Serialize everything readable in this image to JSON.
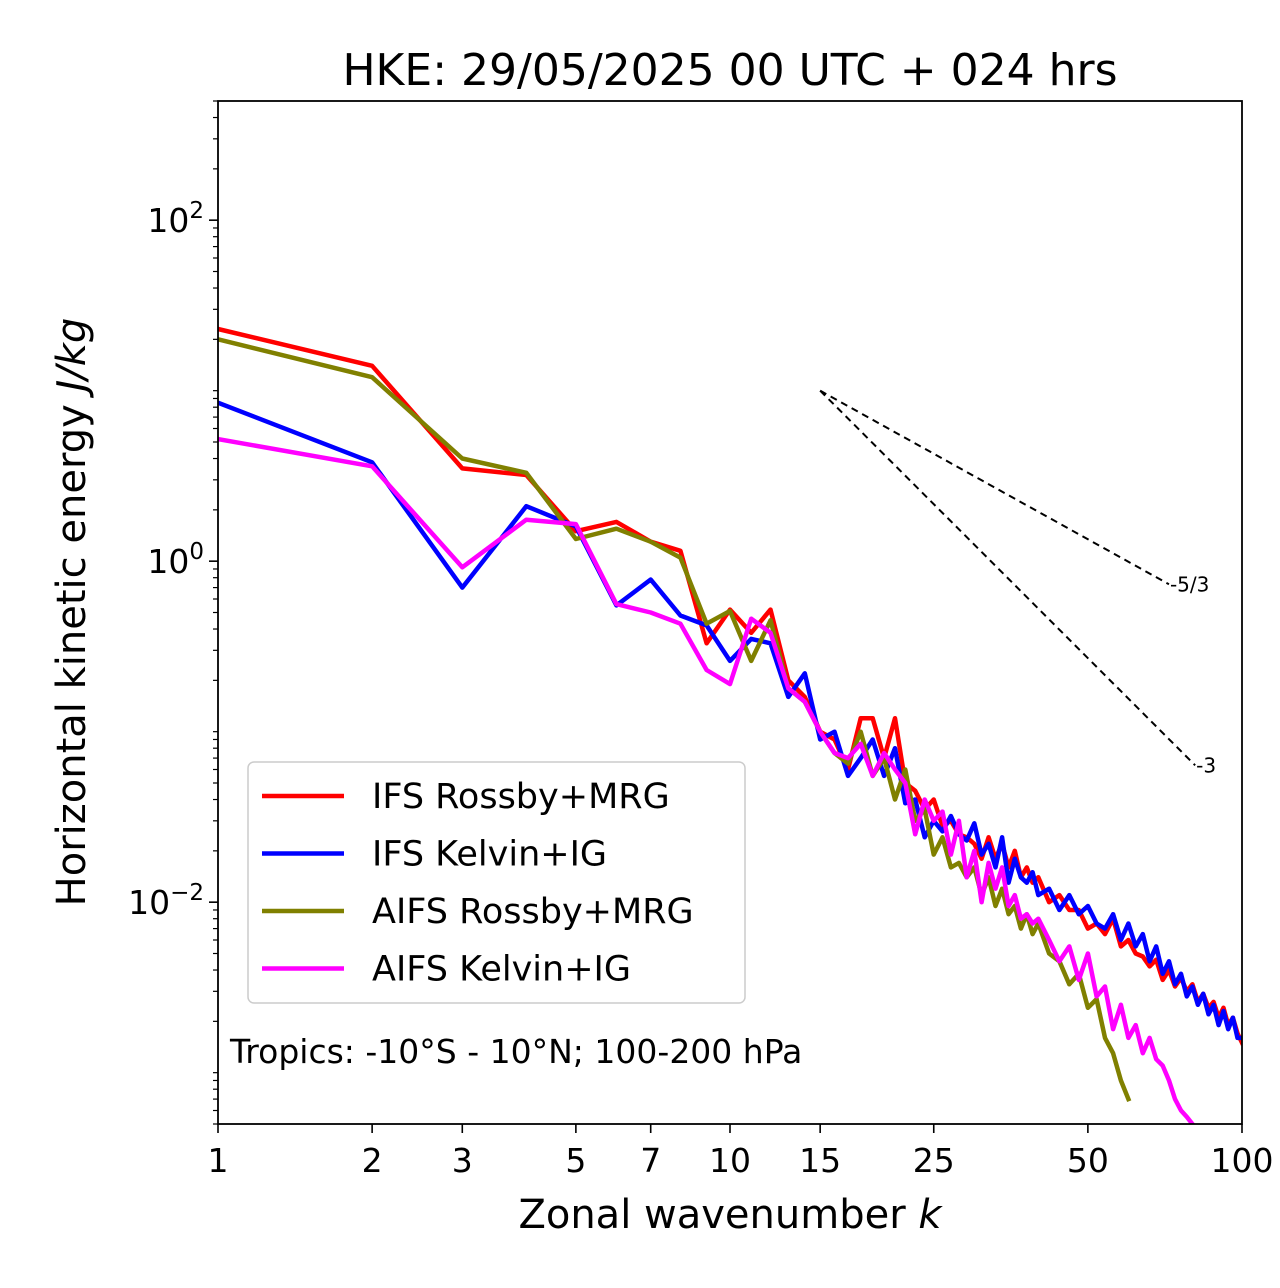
{
  "chart_data": {
    "type": "line",
    "title": "HKE: 29/05/2025 00 UTC + 024 hrs",
    "xlabel": "Zonal wavenumber",
    "xlabel_var": "k",
    "ylabel": "Horizontal kinetic energy",
    "ylabel_unit": "J/kg",
    "xscale": "log",
    "yscale": "log",
    "xlim": [
      1,
      100
    ],
    "ylim": [
      0.0005,
      500
    ],
    "xticks": [
      1,
      2,
      3,
      5,
      7,
      10,
      15,
      25,
      50,
      100
    ],
    "xtick_labels": [
      "1",
      "2",
      "3",
      "5",
      "7",
      "10",
      "15",
      "25",
      "50",
      "100"
    ],
    "yticks": [
      0.01,
      1,
      100
    ],
    "ytick_labels": [
      {
        "base": "10",
        "exp": "−2"
      },
      {
        "base": "10",
        "exp": "0"
      },
      {
        "base": "10",
        "exp": "2"
      }
    ],
    "annotation": "Tropics: -10°S - 10°N; 100-200 hPa",
    "reference_lines": [
      {
        "label": "-5/3",
        "slope": -1.6667,
        "x_start": 15,
        "y_start": 10,
        "x_end": 72,
        "color": "#000000",
        "style": "dashed"
      },
      {
        "label": "-3",
        "slope": -3,
        "x_start": 15,
        "y_start": 10,
        "x_end": 81,
        "color": "#000000",
        "style": "dashed"
      }
    ],
    "legend_position": "lower-left",
    "series": [
      {
        "name": "IFS Rossby+MRG",
        "color": "#ff0000",
        "x": [
          1,
          2,
          3,
          4,
          5,
          6,
          7,
          8,
          9,
          10,
          11,
          12,
          13,
          14,
          15,
          16,
          17,
          18,
          19,
          20,
          21,
          22,
          23,
          24,
          25,
          26,
          27,
          28,
          29,
          30,
          31,
          32,
          33,
          34,
          35,
          36,
          37,
          38,
          39,
          40,
          42,
          44,
          46,
          48,
          50,
          52,
          54,
          56,
          58,
          60,
          62,
          64,
          66,
          68,
          70,
          72,
          74,
          76,
          78,
          80,
          82,
          84,
          86,
          88,
          90,
          92,
          94,
          96,
          98,
          100
        ],
        "y": [
          23,
          14,
          3.5,
          3.2,
          1.5,
          1.7,
          1.3,
          1.15,
          0.33,
          0.52,
          0.38,
          0.52,
          0.2,
          0.16,
          0.1,
          0.09,
          0.06,
          0.12,
          0.12,
          0.07,
          0.12,
          0.05,
          0.045,
          0.035,
          0.04,
          0.028,
          0.03,
          0.025,
          0.024,
          0.022,
          0.018,
          0.024,
          0.018,
          0.022,
          0.016,
          0.02,
          0.014,
          0.016,
          0.013,
          0.014,
          0.01,
          0.011,
          0.009,
          0.009,
          0.007,
          0.0075,
          0.0065,
          0.008,
          0.0055,
          0.006,
          0.005,
          0.0048,
          0.0042,
          0.0046,
          0.0035,
          0.004,
          0.0032,
          0.0036,
          0.003,
          0.0033,
          0.0026,
          0.0029,
          0.0024,
          0.0026,
          0.0021,
          0.0024,
          0.0019,
          0.0021,
          0.0017,
          0.0015
        ]
      },
      {
        "name": "IFS Kelvin+IG",
        "color": "#0000ff",
        "x": [
          1,
          2,
          3,
          4,
          5,
          6,
          7,
          8,
          9,
          10,
          11,
          12,
          13,
          14,
          15,
          16,
          17,
          18,
          19,
          20,
          21,
          22,
          23,
          24,
          25,
          26,
          27,
          28,
          29,
          30,
          31,
          32,
          33,
          34,
          35,
          36,
          37,
          38,
          39,
          40,
          42,
          44,
          46,
          48,
          50,
          52,
          54,
          56,
          58,
          60,
          62,
          64,
          66,
          68,
          70,
          72,
          74,
          76,
          78,
          80,
          82,
          84,
          86,
          88,
          90,
          92,
          94,
          96,
          98,
          100
        ],
        "y": [
          8.5,
          3.8,
          0.7,
          2.1,
          1.6,
          0.55,
          0.78,
          0.48,
          0.42,
          0.26,
          0.35,
          0.33,
          0.16,
          0.22,
          0.09,
          0.1,
          0.055,
          0.07,
          0.09,
          0.055,
          0.08,
          0.038,
          0.04,
          0.024,
          0.03,
          0.026,
          0.032,
          0.025,
          0.023,
          0.029,
          0.019,
          0.022,
          0.016,
          0.024,
          0.013,
          0.018,
          0.014,
          0.013,
          0.015,
          0.011,
          0.012,
          0.009,
          0.011,
          0.0085,
          0.0095,
          0.0075,
          0.007,
          0.0085,
          0.006,
          0.0075,
          0.0055,
          0.0065,
          0.0045,
          0.0055,
          0.0038,
          0.0045,
          0.0033,
          0.0038,
          0.0028,
          0.0032,
          0.0025,
          0.0029,
          0.0022,
          0.0025,
          0.0019,
          0.0023,
          0.0018,
          0.0021,
          0.0016,
          0.0016
        ]
      },
      {
        "name": "AIFS Rossby+MRG",
        "color": "#808000",
        "x": [
          1,
          2,
          3,
          4,
          5,
          6,
          7,
          8,
          9,
          10,
          11,
          12,
          13,
          14,
          15,
          16,
          17,
          18,
          19,
          20,
          21,
          22,
          23,
          24,
          25,
          26,
          27,
          28,
          29,
          30,
          31,
          32,
          33,
          34,
          35,
          36,
          37,
          38,
          39,
          40,
          42,
          44,
          46,
          48,
          50,
          52,
          54,
          56,
          58,
          60
        ],
        "y": [
          20,
          12,
          4,
          3.3,
          1.35,
          1.55,
          1.3,
          1.05,
          0.43,
          0.51,
          0.26,
          0.45,
          0.18,
          0.15,
          0.1,
          0.075,
          0.065,
          0.1,
          0.055,
          0.07,
          0.04,
          0.06,
          0.03,
          0.035,
          0.019,
          0.024,
          0.016,
          0.017,
          0.014,
          0.016,
          0.011,
          0.014,
          0.0095,
          0.012,
          0.0085,
          0.0095,
          0.007,
          0.0085,
          0.0065,
          0.0075,
          0.005,
          0.0045,
          0.0033,
          0.0038,
          0.0024,
          0.0027,
          0.0016,
          0.0013,
          0.0009,
          0.0007
        ]
      },
      {
        "name": "AIFS Kelvin+IG",
        "color": "#ff00ff",
        "x": [
          1,
          2,
          3,
          4,
          5,
          6,
          7,
          8,
          9,
          10,
          11,
          12,
          13,
          14,
          15,
          16,
          17,
          18,
          19,
          20,
          21,
          22,
          23,
          24,
          25,
          26,
          27,
          28,
          29,
          30,
          31,
          32,
          33,
          34,
          35,
          36,
          37,
          38,
          39,
          40,
          42,
          44,
          46,
          48,
          50,
          52,
          54,
          56,
          58,
          60,
          62,
          64,
          66,
          68,
          70,
          72,
          74,
          76,
          78,
          80
        ],
        "y": [
          5.2,
          3.6,
          0.92,
          1.75,
          1.65,
          0.56,
          0.5,
          0.43,
          0.23,
          0.19,
          0.46,
          0.38,
          0.18,
          0.15,
          0.1,
          0.075,
          0.07,
          0.085,
          0.055,
          0.075,
          0.06,
          0.05,
          0.025,
          0.04,
          0.03,
          0.034,
          0.019,
          0.03,
          0.014,
          0.02,
          0.01,
          0.017,
          0.012,
          0.016,
          0.0095,
          0.011,
          0.008,
          0.0085,
          0.0075,
          0.008,
          0.006,
          0.0045,
          0.0055,
          0.0035,
          0.005,
          0.0028,
          0.0032,
          0.0018,
          0.0025,
          0.0016,
          0.0019,
          0.0013,
          0.0016,
          0.0012,
          0.0011,
          0.0009,
          0.0007,
          0.0006,
          0.00055,
          0.0005
        ]
      }
    ]
  }
}
